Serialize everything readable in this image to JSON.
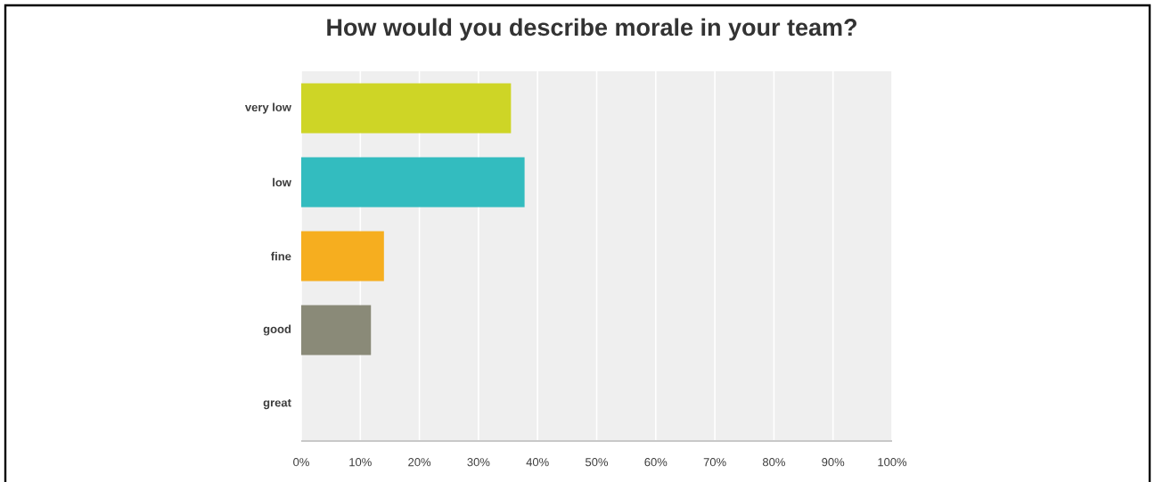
{
  "chart_data": {
    "type": "bar",
    "orientation": "horizontal",
    "title": "How would you describe morale in your team?",
    "categories": [
      "very low",
      "low",
      "fine",
      "good",
      "great"
    ],
    "values": [
      35.5,
      37.8,
      14.0,
      11.8,
      0
    ],
    "colors": [
      "#ced526",
      "#33bcbf",
      "#f6ae1f",
      "#8a8a78",
      "#8a8a78"
    ],
    "xlim": [
      0,
      100
    ],
    "xticks": [
      {
        "value": 0,
        "label": "0%"
      },
      {
        "value": 10,
        "label": "10%"
      },
      {
        "value": 20,
        "label": "20%"
      },
      {
        "value": 30,
        "label": "30%"
      },
      {
        "value": 40,
        "label": "40%"
      },
      {
        "value": 50,
        "label": "50%"
      },
      {
        "value": 60,
        "label": "60%"
      },
      {
        "value": 70,
        "label": "70%"
      },
      {
        "value": 80,
        "label": "80%"
      },
      {
        "value": 90,
        "label": "90%"
      },
      {
        "value": 100,
        "label": "100%"
      }
    ],
    "grid": "x"
  }
}
